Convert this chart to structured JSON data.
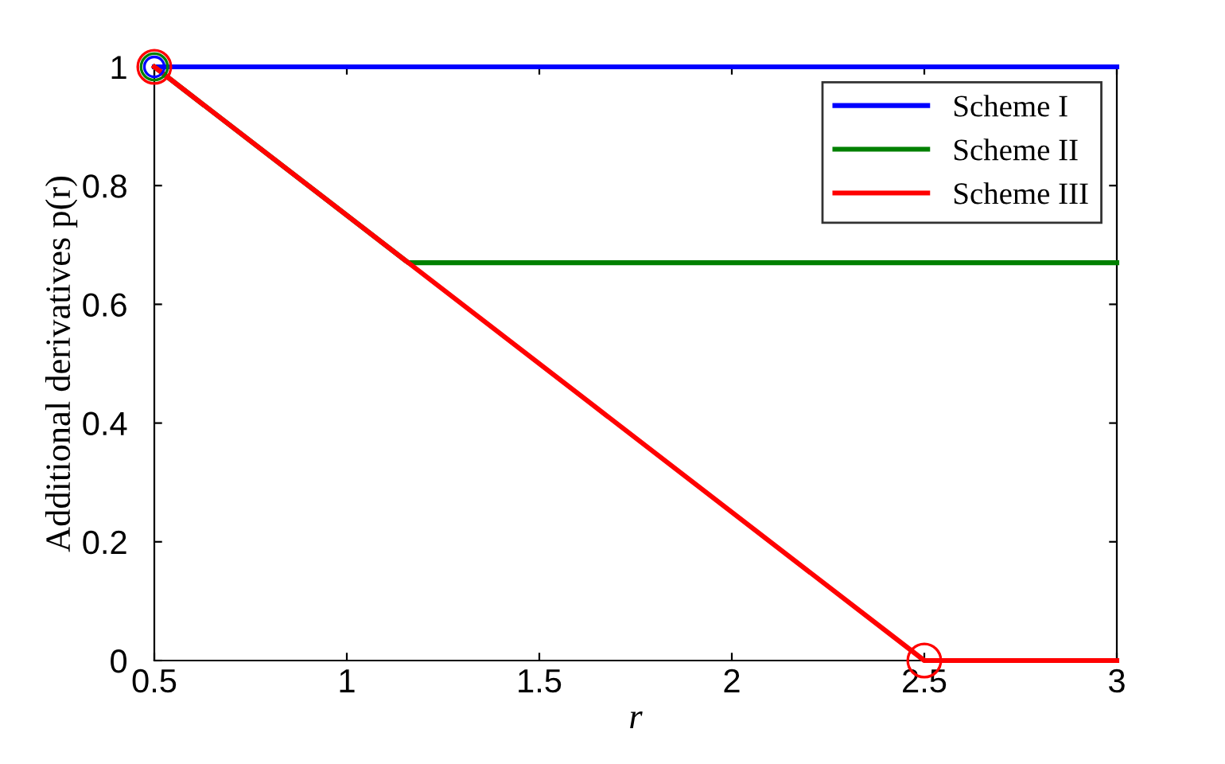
{
  "chart_data": {
    "type": "line",
    "xlabel": "r",
    "ylabel": "Additional derivatives p(r)",
    "xlim": [
      0.5,
      3
    ],
    "ylim": [
      0,
      1
    ],
    "xticks": [
      0.5,
      1,
      1.5,
      2,
      2.5,
      3
    ],
    "yticks": [
      0,
      0.2,
      0.4,
      0.6,
      0.8,
      1
    ],
    "grid": false,
    "legend": "top right",
    "marker": "none",
    "line_style": "solid",
    "series": [
      {
        "name": "Scheme I",
        "color": "#0000ff",
        "x": [
          0.5,
          3
        ],
        "values": [
          1,
          1
        ]
      },
      {
        "name": "Scheme II",
        "color": "#008000",
        "x": [
          0.5,
          1.16,
          3
        ],
        "values": [
          1,
          0.67,
          0.67
        ]
      },
      {
        "name": "Scheme III",
        "color": "#ff0000",
        "x": [
          0.5,
          2.5,
          3
        ],
        "values": [
          1,
          0,
          0
        ]
      },
      {
        "type": "scatter",
        "marker": "circle",
        "color": "#0000ff",
        "x": [
          0.5
        ],
        "values": [
          1
        ]
      },
      {
        "type": "scatter",
        "marker": "circle",
        "color": "#008000",
        "x": [
          0.5
        ],
        "values": [
          1
        ]
      },
      {
        "type": "scatter",
        "marker": "circle",
        "color": "#ff0000",
        "x": [
          0.5,
          2.5
        ],
        "values": [
          1,
          0
        ]
      }
    ]
  }
}
